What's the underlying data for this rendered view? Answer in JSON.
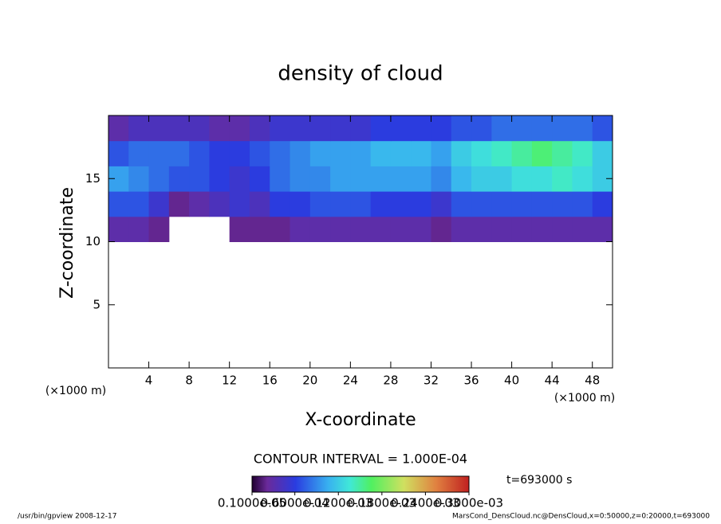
{
  "chart_data": {
    "type": "heatmap",
    "title": "density of cloud",
    "x_label": "X-coordinate",
    "y_label": "Z-coordinate",
    "x_unit_label": "(×1000 m)",
    "y_unit_label": "(×1000 m)",
    "contour_interval": "CONTOUR INTERVAL = 1.000E-04",
    "time_label": "t=693000 s",
    "footer_left": "/usr/bin/gpview   2008-12-17",
    "footer_right": "MarsCond_DensCloud.nc@DensCloud,x=0:50000,z=0:20000,t=693000",
    "xlim": [
      0,
      50
    ],
    "xticks": [
      4,
      8,
      12,
      16,
      20,
      24,
      28,
      32,
      36,
      40,
      44,
      48
    ],
    "ylim": [
      0,
      20
    ],
    "yticks": [
      5,
      10,
      15
    ],
    "cell_width": 2,
    "cell_height": 2,
    "x": [
      1,
      3,
      5,
      7,
      9,
      11,
      13,
      15,
      17,
      19,
      21,
      23,
      25,
      27,
      29,
      31,
      33,
      35,
      37,
      39,
      41,
      43,
      45,
      47,
      49
    ],
    "z": [
      11,
      13,
      15,
      17,
      19
    ],
    "values": [
      [
        3e-05,
        3e-05,
        2e-05,
        null,
        null,
        null,
        2e-05,
        2e-05,
        2e-05,
        3e-05,
        3e-05,
        3e-05,
        3e-05,
        3e-05,
        3e-05,
        3e-05,
        2e-05,
        3e-05,
        3e-05,
        3e-05,
        3e-05,
        3e-05,
        3e-05,
        3e-05,
        3e-05
      ],
      [
        7e-05,
        7e-05,
        5e-05,
        2e-05,
        3e-05,
        4e-05,
        5e-05,
        4e-05,
        6e-05,
        6e-05,
        7e-05,
        7e-05,
        7e-05,
        6e-05,
        6e-05,
        6e-05,
        5e-05,
        7e-05,
        7e-05,
        7e-05,
        7e-05,
        7e-05,
        7e-05,
        7e-05,
        6e-05
      ],
      [
        0.0001,
        9e-05,
        8e-05,
        7e-05,
        7e-05,
        6e-05,
        5e-05,
        6e-05,
        8e-05,
        9e-05,
        9e-05,
        0.0001,
        0.0001,
        0.0001,
        0.0001,
        0.0001,
        9e-05,
        0.00011,
        0.00012,
        0.00012,
        0.00013,
        0.00013,
        0.00014,
        0.00013,
        0.00012
      ],
      [
        7e-05,
        8e-05,
        8e-05,
        8e-05,
        7e-05,
        6e-05,
        6e-05,
        7e-05,
        8e-05,
        9e-05,
        0.0001,
        0.0001,
        0.0001,
        0.00011,
        0.00011,
        0.00011,
        0.0001,
        0.00012,
        0.00013,
        0.00014,
        0.00015,
        0.00016,
        0.00015,
        0.00014,
        0.00012
      ],
      [
        3e-05,
        4e-05,
        4e-05,
        4e-05,
        4e-05,
        3e-05,
        3e-05,
        4e-05,
        5e-05,
        5e-05,
        5e-05,
        5e-05,
        5e-05,
        6e-05,
        6e-05,
        6e-05,
        6e-05,
        7e-05,
        7e-05,
        8e-05,
        8e-05,
        8e-05,
        8e-05,
        8e-05,
        7e-05
      ]
    ],
    "colorbar_lim": [
      1e-06,
      0.0003
    ],
    "colorbar_ticks": [
      {
        "value": 1e-06,
        "label": "0.1000e-05"
      },
      {
        "value": 6e-05,
        "label": "0.6000e-04"
      },
      {
        "value": 0.00012,
        "label": "0.1200e-03"
      },
      {
        "value": 0.00018,
        "label": "0.1800e-03"
      },
      {
        "value": 0.00024,
        "label": "0.2400e-03"
      },
      {
        "value": 0.0003,
        "label": "0.3000e-03"
      }
    ]
  }
}
